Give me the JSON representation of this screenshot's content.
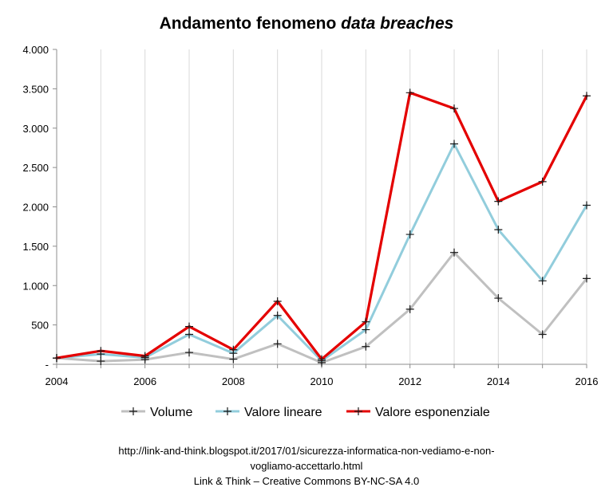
{
  "chart_data": {
    "type": "line",
    "title_plain": "Andamento fenomeno ",
    "title_italic": "data breaches",
    "x": [
      2004,
      2005,
      2006,
      2007,
      2008,
      2009,
      2010,
      2011,
      2012,
      2013,
      2014,
      2015,
      2016
    ],
    "xticks": [
      2004,
      2006,
      2008,
      2010,
      2012,
      2014,
      2016
    ],
    "xlim": [
      2004,
      2016
    ],
    "ylim": [
      0,
      4000
    ],
    "yticks": [
      0,
      500,
      1000,
      1500,
      2000,
      2500,
      3000,
      3500,
      4000
    ],
    "ytick_labels": [
      "-",
      "500",
      "1.000",
      "1.500",
      "2.000",
      "2.500",
      "3.000",
      "3.500",
      "4.000"
    ],
    "grid": "vertical",
    "legend": "bottom",
    "marker": "plus",
    "series": [
      {
        "name": "Volume",
        "color": "#c0c0c0",
        "values": [
          80,
          40,
          60,
          150,
          65,
          260,
          20,
          225,
          700,
          1420,
          840,
          380,
          1090
        ]
      },
      {
        "name": "Valore lineare",
        "color": "#92cddc",
        "values": [
          80,
          130,
          85,
          380,
          140,
          620,
          45,
          440,
          1650,
          2800,
          1710,
          1060,
          2020
        ]
      },
      {
        "name": "Valore esponenziale",
        "color": "#e40000",
        "values": [
          80,
          170,
          105,
          480,
          185,
          800,
          65,
          540,
          3450,
          3250,
          2070,
          2320,
          3410
        ]
      }
    ]
  },
  "caption": {
    "line1": "http://link-and-think.blogspot.it/2017/01/sicurezza-informatica-non-vediamo-e-non-",
    "line2": "vogliamo-accettarlo.html",
    "line3": "Link & Think – Creative Commons BY-NC-SA 4.0"
  }
}
